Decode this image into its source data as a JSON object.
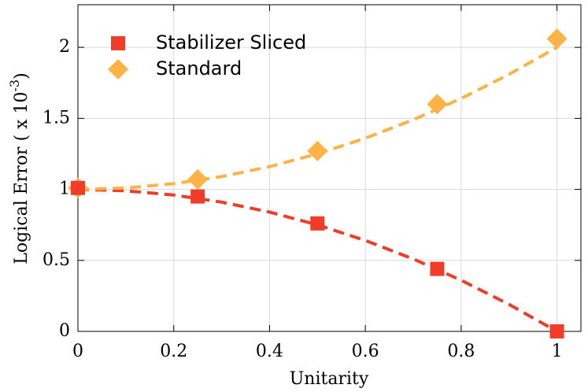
{
  "chart_data": {
    "type": "scatter",
    "xlabel": "Unitarity",
    "ylabel": "Logical Error ( x 10",
    "ylabel_sup": "-3",
    "ylabel_end": ")",
    "x": [
      0,
      0.25,
      0.5,
      0.75,
      1
    ],
    "series": [
      {
        "name": "Stabilizer Sliced",
        "color": "#f03c28",
        "marker": "square",
        "values": [
          1.01,
          0.95,
          0.76,
          0.44,
          0
        ]
      },
      {
        "name": "Standard",
        "color": "#ffb347",
        "marker": "diamond",
        "values": [
          1.01,
          1.07,
          1.27,
          1.6,
          2.06
        ]
      }
    ],
    "fits": [
      {
        "color": "#f03c28",
        "x": [
          0,
          0.1,
          0.2,
          0.3,
          0.4,
          0.5,
          0.6,
          0.7,
          0.8,
          0.9,
          1
        ],
        "values": [
          1,
          0.99,
          0.96,
          0.91,
          0.84,
          0.75,
          0.64,
          0.51,
          0.36,
          0.19,
          0
        ]
      },
      {
        "color": "#ffb347",
        "x": [
          0,
          0.1,
          0.2,
          0.3,
          0.4,
          0.5,
          0.6,
          0.7,
          0.8,
          0.9,
          1
        ],
        "values": [
          1,
          1.01,
          1.04,
          1.09,
          1.16,
          1.25,
          1.36,
          1.49,
          1.64,
          1.81,
          2
        ]
      }
    ],
    "xlim": [
      0,
      1.05
    ],
    "ylim": [
      0,
      2.3
    ],
    "xticks": [
      0,
      0.2,
      0.4,
      0.6,
      0.8,
      1
    ],
    "yticks": [
      0,
      0.5,
      1,
      1.5,
      2
    ],
    "grid": true,
    "legend": "upper left"
  }
}
